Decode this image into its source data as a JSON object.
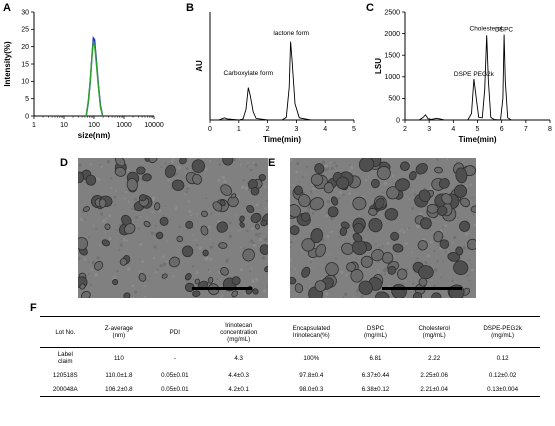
{
  "panels": {
    "a": "A",
    "b": "B",
    "c": "C",
    "d": "D",
    "e": "E",
    "f": "F"
  },
  "chart_data": [
    {
      "type": "line",
      "panel": "A",
      "xlabel": "size(nm)",
      "ylabel": "Intensity(%)",
      "xscale": "log",
      "xlim": [
        1,
        10000
      ],
      "ylim": [
        0,
        30
      ],
      "xticks": [
        "1",
        "10",
        "100",
        "1000",
        "10000"
      ],
      "yticks": [
        "0",
        "5",
        "10",
        "15",
        "20",
        "25",
        "30"
      ],
      "series": [
        {
          "color": "#1f2fb8",
          "x": [
            55,
            65,
            75,
            85,
            95,
            105,
            120,
            140,
            165,
            195
          ],
          "y": [
            0,
            4,
            10,
            17,
            22.5,
            22,
            16,
            9,
            3,
            0
          ]
        },
        {
          "color": "#2ca02c",
          "x": [
            55,
            65,
            75,
            85,
            95,
            105,
            120,
            140,
            165,
            195
          ],
          "y": [
            0,
            4.5,
            10.5,
            17,
            21,
            20.5,
            15,
            8.5,
            2.5,
            0
          ]
        }
      ]
    },
    {
      "type": "line",
      "panel": "B",
      "xlabel": "Time(min)",
      "ylabel": "AU",
      "xlim": [
        0,
        5
      ],
      "ylim": [
        0,
        0.2
      ],
      "xticks": [
        "0",
        "1",
        "2",
        "3",
        "4",
        "5"
      ],
      "annotations": [
        {
          "text": "Carboxylate form",
          "x": 1.33,
          "y": 0.078
        },
        {
          "text": "lactone form",
          "x": 2.82,
          "y": 0.152
        }
      ],
      "series": [
        {
          "color": "#000000",
          "x": [
            0,
            0.3,
            0.5,
            0.6,
            1.0,
            1.15,
            1.25,
            1.33,
            1.4,
            1.5,
            1.6,
            2.0,
            2.5,
            2.65,
            2.75,
            2.8,
            2.85,
            2.95,
            3.1,
            3.5,
            5.0
          ],
          "y": [
            0,
            0,
            0.004,
            0.002,
            0,
            0.002,
            0.02,
            0.06,
            0.045,
            0.015,
            0.003,
            0,
            0,
            0.005,
            0.06,
            0.145,
            0.11,
            0.03,
            0.004,
            0,
            0
          ]
        }
      ]
    },
    {
      "type": "line",
      "panel": "C",
      "xlabel": "Time(min)",
      "ylabel": "LSU",
      "xlim": [
        2,
        8
      ],
      "ylim": [
        0,
        2500
      ],
      "xticks": [
        "2",
        "3",
        "4",
        "5",
        "6",
        "7",
        "8"
      ],
      "yticks": [
        "0",
        "500",
        "1000",
        "1500",
        "2000",
        "2500"
      ],
      "annotations": [
        {
          "text": "DSPE PEG2k",
          "x": 4.85,
          "y": 950
        },
        {
          "text": "Cholesterol",
          "x": 5.35,
          "y": 2000
        },
        {
          "text": "DSPC",
          "x": 6.1,
          "y": 1980
        }
      ],
      "series": [
        {
          "color": "#000000",
          "x": [
            2.2,
            2.6,
            2.75,
            2.85,
            2.95,
            3.1,
            3.3,
            3.45,
            3.6,
            4.6,
            4.75,
            4.85,
            4.95,
            5.05,
            5.2,
            5.3,
            5.38,
            5.45,
            5.55,
            5.7,
            5.95,
            6.05,
            6.1,
            6.15,
            6.25,
            6.4,
            7.8
          ],
          "y": [
            0,
            5,
            60,
            120,
            30,
            15,
            40,
            25,
            5,
            0,
            150,
            950,
            500,
            60,
            50,
            700,
            1960,
            900,
            60,
            10,
            0,
            500,
            1980,
            900,
            50,
            0,
            0
          ]
        }
      ]
    },
    {
      "type": "table",
      "panel": "F",
      "columns": [
        "Lot No.",
        "Z-average\n(nm)",
        "PDI",
        "Irinotecan\nconcentration\n(mg/mL)",
        "Encapsulated\nIrinotecan(%)",
        "DSPC\n(mg/mL)",
        "Cholesterol\n(mg/mL)",
        "DSPE-PEG2k\n(mg/mL)"
      ],
      "rows": [
        [
          "Label\nclaim",
          "110",
          "-",
          "4.3",
          "100%",
          "6.81",
          "2.22",
          "0.12"
        ],
        [
          "120518S",
          "110.0±1.8",
          "0.05±0.01",
          "4.4±0.3",
          "97.8±0.4",
          "6.37±0.44",
          "2.25±0.06",
          "0.12±0.02"
        ],
        [
          "200048A",
          "106.2±0.8",
          "0.05±0.01",
          "4.2±0.1",
          "98.0±0.3",
          "6.38±0.12",
          "2.21±0.04",
          "0.13±0.004"
        ]
      ]
    }
  ]
}
